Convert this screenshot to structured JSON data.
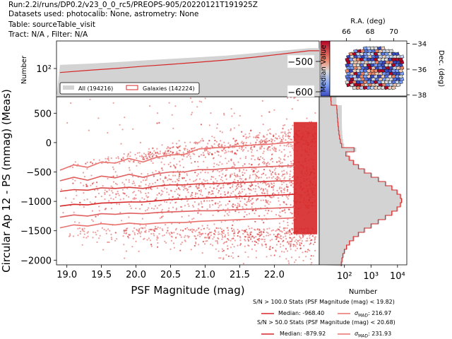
{
  "header": {
    "run": "Run:2.2i/runs/DP0.2/v23_0_0_rc5/PREOPS-905/20220121T191925Z",
    "datasets": "Datasets used: photocalib: None, astrometry: None",
    "table": "Table: sourceTable_visit",
    "tract": "Tract: N/A , Filter: N/A"
  },
  "chart_data": [
    {
      "type": "scatter",
      "title": "",
      "xlabel": "PSF Magnitude (mag)",
      "ylabel": "Circular Ap 12 - PS (mmag) (Meas)",
      "xlim": [
        18.85,
        22.65
      ],
      "ylim": [
        -2080,
        780
      ],
      "xticks": [
        19.0,
        19.5,
        20.0,
        20.5,
        21.0,
        21.5,
        22.0
      ],
      "xtick_labels": [
        "19.0",
        "19.5",
        "20.0",
        "20.5",
        "21.0",
        "21.5",
        "22.0"
      ],
      "yticks": [
        500,
        0,
        -500,
        -1000,
        -1500,
        -2000
      ],
      "ytick_labels": [
        "500",
        "0",
        "−500",
        "−1000",
        "−1500",
        "−2000"
      ],
      "grid": false,
      "point_color": "#d62728",
      "percentile_lines": [
        {
          "x": [
            18.9,
            19.1,
            19.3,
            19.5,
            19.7,
            19.9,
            20.1,
            20.3,
            20.5,
            20.7,
            20.9,
            21.1,
            21.3,
            21.5,
            21.7,
            21.9,
            22.1,
            22.3
          ],
          "y": [
            -470,
            -380,
            -420,
            -330,
            -350,
            -270,
            -330,
            -250,
            -210,
            -200,
            -110,
            -90,
            -80,
            -60,
            -40,
            -30,
            -10,
            10
          ]
        },
        {
          "x": [
            18.9,
            19.1,
            19.3,
            19.5,
            19.7,
            19.9,
            20.1,
            20.3,
            20.5,
            20.7,
            20.9,
            21.1,
            21.3,
            21.5,
            21.7,
            21.9,
            22.1,
            22.3
          ],
          "y": [
            -650,
            -590,
            -640,
            -570,
            -600,
            -540,
            -590,
            -530,
            -500,
            -500,
            -460,
            -460,
            -440,
            -430,
            -420,
            -410,
            -400,
            -390
          ]
        },
        {
          "x": [
            18.9,
            19.1,
            19.3,
            19.5,
            19.7,
            19.9,
            20.1,
            20.3,
            20.5,
            20.7,
            20.9,
            21.1,
            21.3,
            21.5,
            21.7,
            21.9,
            22.1,
            22.3
          ],
          "y": [
            -830,
            -800,
            -810,
            -770,
            -780,
            -760,
            -780,
            -740,
            -720,
            -720,
            -700,
            -700,
            -690,
            -680,
            -670,
            -660,
            -650,
            -650
          ]
        },
        {
          "x": [
            18.9,
            19.1,
            19.3,
            19.5,
            19.7,
            19.9,
            20.1,
            20.3,
            20.5,
            20.7,
            20.9,
            21.1,
            21.3,
            21.5,
            21.7,
            21.9,
            22.1,
            22.3
          ],
          "y": [
            -1080,
            -1050,
            -1060,
            -1030,
            -1020,
            -1010,
            -1010,
            -990,
            -970,
            -960,
            -950,
            -940,
            -930,
            -920,
            -910,
            -900,
            -890,
            -880
          ]
        },
        {
          "x": [
            18.9,
            19.1,
            19.3,
            19.5,
            19.7,
            19.9,
            20.1,
            20.3,
            20.5,
            20.7,
            20.9,
            21.1,
            21.3,
            21.5,
            21.7,
            21.9,
            22.1,
            22.3
          ],
          "y": [
            -1270,
            -1230,
            -1250,
            -1210,
            -1220,
            -1200,
            -1210,
            -1190,
            -1180,
            -1170,
            -1160,
            -1160,
            -1150,
            -1140,
            -1130,
            -1120,
            -1110,
            -1100
          ]
        },
        {
          "x": [
            18.9,
            19.1,
            19.3,
            19.5,
            19.7,
            19.9,
            20.1,
            20.3,
            20.5,
            20.7,
            20.9,
            21.1,
            21.3,
            21.5,
            21.7,
            21.9,
            22.1,
            22.3
          ],
          "y": [
            -1450,
            -1400,
            -1420,
            -1380,
            -1400,
            -1370,
            -1390,
            -1370,
            -1360,
            -1360,
            -1340,
            -1330,
            -1320,
            -1310,
            -1300,
            -1300,
            -1290,
            -1280
          ]
        }
      ]
    },
    {
      "type": "area",
      "title": "",
      "xlabel": "",
      "ylabel": "Number",
      "yscale": "log",
      "ytick_labels": [
        "10²"
      ],
      "legend": {
        "placement": "bottom-left",
        "entries": [
          "All (194216)",
          "Galaxies (142224)"
        ]
      },
      "series": [
        {
          "name": "All (194216)",
          "color": "#d3d3d3",
          "x": [
            18.9,
            19.3,
            19.7,
            20.1,
            20.5,
            20.9,
            21.3,
            21.7,
            22.1,
            22.5
          ],
          "values": [
            180,
            200,
            230,
            270,
            310,
            360,
            420,
            520,
            650,
            820
          ]
        },
        {
          "name": "Galaxies (142224)",
          "color": "#d62728",
          "x": [
            18.9,
            19.3,
            19.7,
            20.1,
            20.5,
            20.9,
            21.3,
            21.7,
            22.1,
            22.5
          ],
          "values": [
            90,
            110,
            130,
            160,
            190,
            230,
            280,
            360,
            480,
            650
          ]
        }
      ]
    },
    {
      "type": "area",
      "title": "",
      "xlabel": "Number",
      "xscale": "log",
      "xtick_labels": [
        "10²",
        "10³",
        "10⁴"
      ],
      "series": [
        {
          "name": "All",
          "color": "#d3d3d3"
        },
        {
          "name": "Galaxies",
          "color": "#d62728"
        }
      ]
    },
    {
      "type": "scatter",
      "title": "",
      "xlabel": "R.A. (deg)",
      "ylabel": "Dec. (deg)",
      "xticks": [
        66,
        68,
        70
      ],
      "xtick_labels": [
        "66",
        "68",
        "70"
      ],
      "yticks": [
        -34,
        -36,
        -38
      ],
      "ytick_labels": [
        "−34",
        "−36",
        "−38"
      ],
      "colorbar": {
        "label": "Median Value",
        "tick_labels": [
          "−500",
          "−600"
        ]
      }
    }
  ],
  "stats": {
    "block1_title": "S/N > 100.0 Stats (PSF Magnitude (mag) < 19.82)",
    "block1_median": "Median: -968.40",
    "block1_sigma": "σ",
    "block1_sigma_sub": "MAD",
    "block1_sigma_val": ": 216.97",
    "block2_title": "S/N > 50.0 Stats (PSF Magnitude (mag) < 20.68)",
    "block2_median": "Median: -879.92",
    "block2_sigma": "σ",
    "block2_sigma_sub": "MAD",
    "block2_sigma_val": ": 231.93",
    "line_dark": "#d62728",
    "line_light": "#e8716d"
  }
}
